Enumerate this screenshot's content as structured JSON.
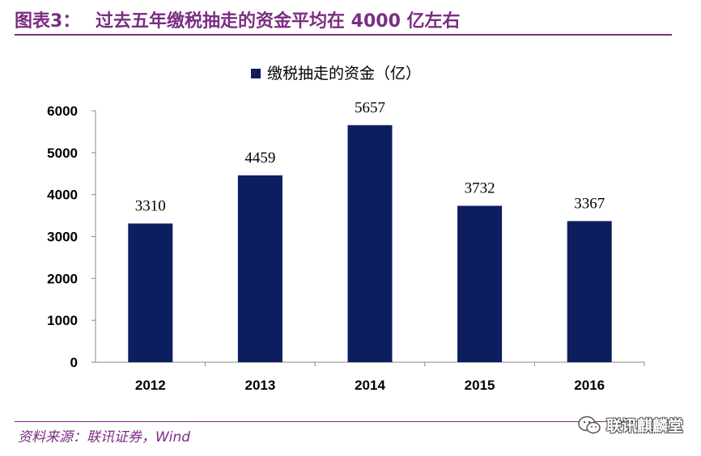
{
  "header": {
    "label": "图表3：",
    "title": "过去五年缴税抽走的资金平均在 4000 亿左右"
  },
  "footer": {
    "source": "资料来源：联讯证券，Wind",
    "watermark": "联讯麒麟堂"
  },
  "colors": {
    "accent": "#7B2D83",
    "bar": "#0C1E5E",
    "text": "#000000",
    "axis": "#888888"
  },
  "chart_data": {
    "type": "bar",
    "title": "",
    "xlabel": "",
    "ylabel": "",
    "categories": [
      "2012",
      "2013",
      "2014",
      "2015",
      "2016"
    ],
    "series": [
      {
        "name": "缴税抽走的资金（亿）",
        "values": [
          3310,
          4459,
          5657,
          3732,
          3367
        ]
      }
    ],
    "data_labels": [
      "3310",
      "4459",
      "5657",
      "3732",
      "3367"
    ],
    "yticks": [
      "0",
      "1000",
      "2000",
      "3000",
      "4000",
      "5000",
      "6000"
    ],
    "ylim": [
      0,
      6000
    ],
    "grid": false,
    "legend_position": "top-center"
  }
}
